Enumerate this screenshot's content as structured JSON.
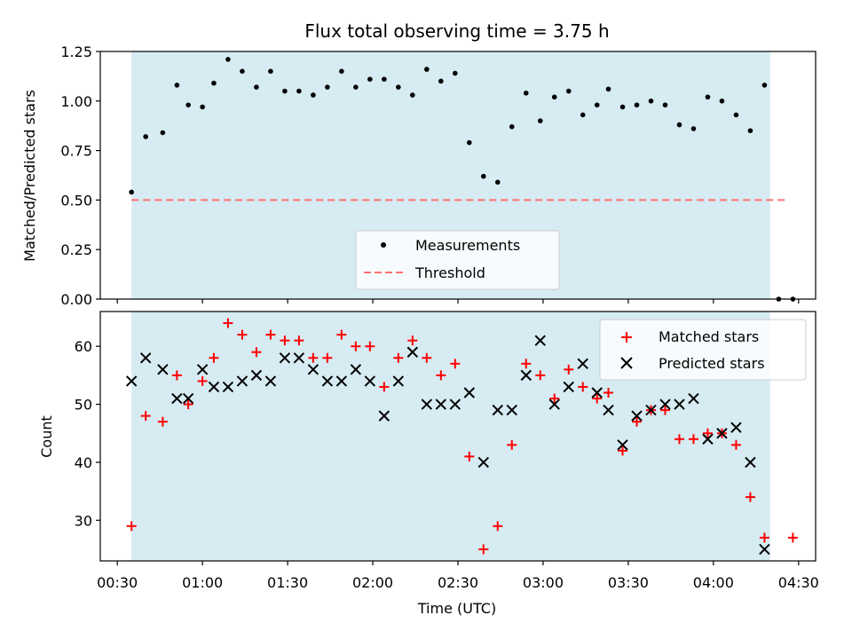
{
  "chart_data": [
    {
      "type": "scatter",
      "title": "Flux total observing time = 3.75 h",
      "xlabel": "",
      "ylabel": "Matched/Predicted stars",
      "ylim": [
        0,
        1.25
      ],
      "yticks": [
        0,
        0.25,
        0.5,
        0.75,
        1.0,
        1.25
      ],
      "ytick_labels": [
        "0.00",
        "0.25",
        "0.50",
        "0.75",
        "1.00",
        "1.25"
      ],
      "xlim_minutes": [
        24,
        276
      ],
      "observing_window_minutes": [
        35,
        260
      ],
      "legend": {
        "placement": "lower-center",
        "entries": [
          "Measurements",
          "Threshold"
        ]
      },
      "series": [
        {
          "name": "Measurements",
          "marker": "dot",
          "color": "#000000",
          "x": [
            35,
            40,
            46,
            51,
            55,
            60,
            64,
            69,
            74,
            79,
            84,
            89,
            94,
            99,
            104,
            109,
            114,
            119,
            124,
            129,
            134,
            139,
            144,
            149,
            154,
            159,
            164,
            169,
            174,
            179,
            184,
            189,
            194,
            199,
            203,
            208,
            213,
            218,
            223,
            228,
            233,
            238,
            243,
            248,
            253,
            258,
            263,
            268
          ],
          "y": [
            0.54,
            0.82,
            0.84,
            1.08,
            0.98,
            0.97,
            1.09,
            1.21,
            1.15,
            1.07,
            1.15,
            1.05,
            1.05,
            1.03,
            1.07,
            1.15,
            1.07,
            1.11,
            1.11,
            1.07,
            1.03,
            1.16,
            1.1,
            1.14,
            0.79,
            0.62,
            0.59,
            0.87,
            1.04,
            0.9,
            1.02,
            1.05,
            0.93,
            0.98,
            1.06,
            0.97,
            0.98,
            1.0,
            0.98,
            0.88,
            0.86,
            1.02,
            1.0,
            0.93,
            0.85,
            1.08,
            0.0,
            0.0
          ]
        },
        {
          "name": "Threshold",
          "type": "line",
          "style": "dashed",
          "color": "#ff7070",
          "x": [
            35,
            266
          ],
          "y": [
            0.5,
            0.5
          ]
        }
      ]
    },
    {
      "type": "scatter",
      "xlabel": "Time (UTC)",
      "ylabel": "Count",
      "ylim": [
        23,
        66
      ],
      "yticks": [
        30,
        40,
        50,
        60
      ],
      "ytick_labels": [
        "30",
        "40",
        "50",
        "60"
      ],
      "xlim_minutes": [
        24,
        276
      ],
      "observing_window_minutes": [
        35,
        260
      ],
      "xticks_minutes": [
        30,
        60,
        90,
        120,
        150,
        180,
        210,
        240,
        270
      ],
      "xtick_labels": [
        "00:30",
        "01:00",
        "01:30",
        "02:00",
        "02:30",
        "03:00",
        "03:30",
        "04:00",
        "04:30"
      ],
      "legend": {
        "placement": "top-right",
        "entries": [
          "Matched stars",
          "Predicted stars"
        ]
      },
      "series": [
        {
          "name": "Matched stars",
          "marker": "plus",
          "color": "#ff0000",
          "x": [
            35,
            40,
            46,
            51,
            55,
            60,
            64,
            69,
            74,
            79,
            84,
            89,
            94,
            99,
            104,
            109,
            114,
            119,
            124,
            129,
            134,
            139,
            144,
            149,
            154,
            159,
            164,
            169,
            174,
            179,
            184,
            189,
            194,
            199,
            203,
            208,
            213,
            218,
            223,
            228,
            233,
            238,
            243,
            248,
            253,
            258,
            263,
            268
          ],
          "y": [
            29,
            48,
            47,
            55,
            50,
            54,
            58,
            64,
            62,
            59,
            62,
            61,
            61,
            58,
            58,
            62,
            60,
            60,
            53,
            58,
            61,
            58,
            55,
            57,
            41,
            25,
            29,
            43,
            57,
            55,
            51,
            56,
            53,
            51,
            52,
            42,
            47,
            49,
            49,
            44,
            44,
            45,
            45,
            43,
            34,
            27,
            null,
            27
          ]
        },
        {
          "name": "Predicted stars",
          "marker": "x",
          "color": "#000000",
          "x": [
            35,
            40,
            46,
            51,
            55,
            60,
            64,
            69,
            74,
            79,
            84,
            89,
            94,
            99,
            104,
            109,
            114,
            119,
            124,
            129,
            134,
            139,
            144,
            149,
            154,
            159,
            164,
            169,
            174,
            179,
            184,
            189,
            194,
            199,
            203,
            208,
            213,
            218,
            223,
            228,
            233,
            238,
            243,
            248,
            253,
            258
          ],
          "y": [
            54,
            58,
            56,
            51,
            51,
            56,
            53,
            53,
            54,
            55,
            54,
            58,
            58,
            56,
            54,
            54,
            56,
            54,
            48,
            54,
            59,
            50,
            50,
            50,
            52,
            40,
            49,
            49,
            55,
            61,
            50,
            53,
            57,
            52,
            49,
            43,
            48,
            49,
            50,
            50,
            51,
            44,
            45,
            46,
            40,
            25
          ]
        }
      ]
    }
  ]
}
